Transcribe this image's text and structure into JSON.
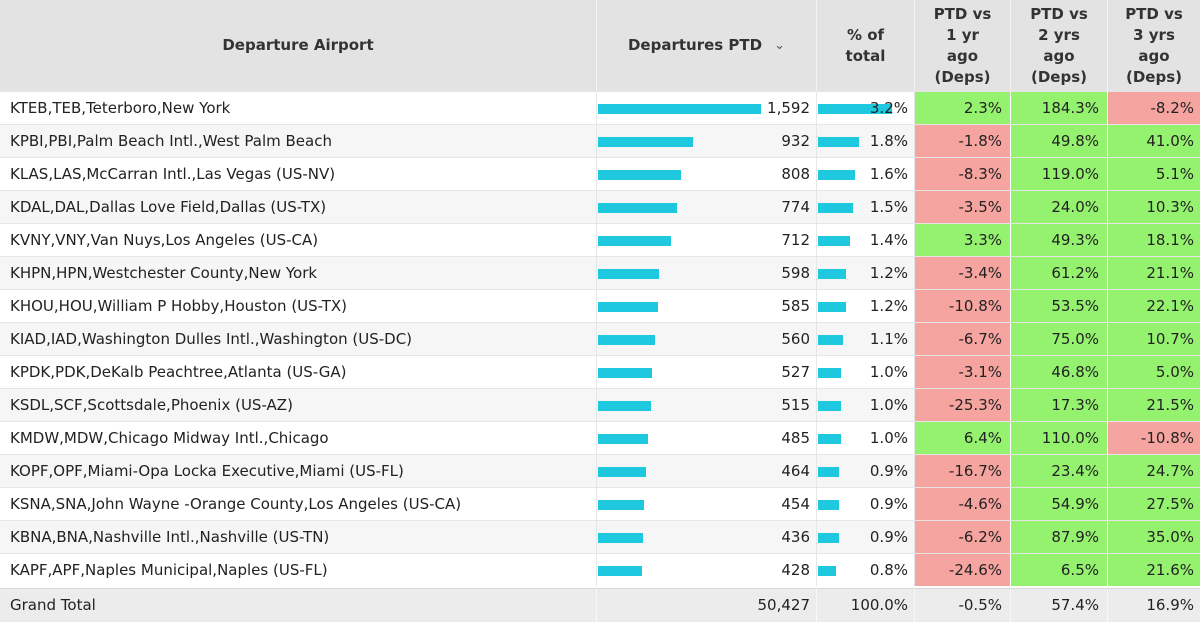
{
  "table": {
    "headers": {
      "airport": "Departure Airport",
      "departures": "Departures PTD",
      "pct": "% of\ntotal",
      "vs1": "PTD vs\n1 yr\nago\n(Deps)",
      "vs2": "PTD vs\n2 yrs\nago\n(Deps)",
      "vs3": "PTD vs\n3 yrs\nago\n(Deps)"
    },
    "sort_icon": "chevron-down-icon",
    "colors": {
      "bar": "#1ec8df",
      "positive": "#95f26f",
      "negative": "#f6a4a0"
    },
    "bar_max_value": 1592,
    "rows": [
      {
        "airport": "KTEB,TEB,Teterboro,New York",
        "departures": "1,592",
        "dep_value": 1592,
        "pct": "3.2%",
        "pct_value": 3.2,
        "vs1": "2.3%",
        "vs2": "184.3%",
        "vs3": "-8.2%"
      },
      {
        "airport": "KPBI,PBI,Palm Beach Intl.,West Palm Beach",
        "departures": "932",
        "dep_value": 932,
        "pct": "1.8%",
        "pct_value": 1.8,
        "vs1": "-1.8%",
        "vs2": "49.8%",
        "vs3": "41.0%"
      },
      {
        "airport": "KLAS,LAS,McCarran Intl.,Las Vegas (US-NV)",
        "departures": "808",
        "dep_value": 808,
        "pct": "1.6%",
        "pct_value": 1.6,
        "vs1": "-8.3%",
        "vs2": "119.0%",
        "vs3": "5.1%"
      },
      {
        "airport": "KDAL,DAL,Dallas Love Field,Dallas (US-TX)",
        "departures": "774",
        "dep_value": 774,
        "pct": "1.5%",
        "pct_value": 1.5,
        "vs1": "-3.5%",
        "vs2": "24.0%",
        "vs3": "10.3%"
      },
      {
        "airport": "KVNY,VNY,Van Nuys,Los Angeles (US-CA)",
        "departures": "712",
        "dep_value": 712,
        "pct": "1.4%",
        "pct_value": 1.4,
        "vs1": "3.3%",
        "vs2": "49.3%",
        "vs3": "18.1%"
      },
      {
        "airport": "KHPN,HPN,Westchester County,New York",
        "departures": "598",
        "dep_value": 598,
        "pct": "1.2%",
        "pct_value": 1.2,
        "vs1": "-3.4%",
        "vs2": "61.2%",
        "vs3": "21.1%"
      },
      {
        "airport": "KHOU,HOU,William P Hobby,Houston (US-TX)",
        "departures": "585",
        "dep_value": 585,
        "pct": "1.2%",
        "pct_value": 1.2,
        "vs1": "-10.8%",
        "vs2": "53.5%",
        "vs3": "22.1%"
      },
      {
        "airport": "KIAD,IAD,Washington Dulles Intl.,Washington (US-DC)",
        "departures": "560",
        "dep_value": 560,
        "pct": "1.1%",
        "pct_value": 1.1,
        "vs1": "-6.7%",
        "vs2": "75.0%",
        "vs3": "10.7%"
      },
      {
        "airport": "KPDK,PDK,DeKalb Peachtree,Atlanta (US-GA)",
        "departures": "527",
        "dep_value": 527,
        "pct": "1.0%",
        "pct_value": 1.0,
        "vs1": "-3.1%",
        "vs2": "46.8%",
        "vs3": "5.0%"
      },
      {
        "airport": "KSDL,SCF,Scottsdale,Phoenix (US-AZ)",
        "departures": "515",
        "dep_value": 515,
        "pct": "1.0%",
        "pct_value": 1.0,
        "vs1": "-25.3%",
        "vs2": "17.3%",
        "vs3": "21.5%"
      },
      {
        "airport": "KMDW,MDW,Chicago Midway Intl.,Chicago",
        "departures": "485",
        "dep_value": 485,
        "pct": "1.0%",
        "pct_value": 1.0,
        "vs1": "6.4%",
        "vs2": "110.0%",
        "vs3": "-10.8%"
      },
      {
        "airport": "KOPF,OPF,Miami-Opa Locka Executive,Miami (US-FL)",
        "departures": "464",
        "dep_value": 464,
        "pct": "0.9%",
        "pct_value": 0.9,
        "vs1": "-16.7%",
        "vs2": "23.4%",
        "vs3": "24.7%"
      },
      {
        "airport": "KSNA,SNA,John Wayne -Orange County,Los Angeles (US-CA)",
        "departures": "454",
        "dep_value": 454,
        "pct": "0.9%",
        "pct_value": 0.9,
        "vs1": "-4.6%",
        "vs2": "54.9%",
        "vs3": "27.5%"
      },
      {
        "airport": "KBNA,BNA,Nashville Intl.,Nashville (US-TN)",
        "departures": "436",
        "dep_value": 436,
        "pct": "0.9%",
        "pct_value": 0.9,
        "vs1": "-6.2%",
        "vs2": "87.9%",
        "vs3": "35.0%"
      },
      {
        "airport": "KAPF,APF,Naples Municipal,Naples (US-FL)",
        "departures": "428",
        "dep_value": 428,
        "pct": "0.8%",
        "pct_value": 0.8,
        "vs1": "-24.6%",
        "vs2": "6.5%",
        "vs3": "21.6%"
      }
    ],
    "total": {
      "label": "Grand Total",
      "departures": "50,427",
      "pct": "100.0%",
      "vs1": "-0.5%",
      "vs2": "57.4%",
      "vs3": "16.9%"
    }
  }
}
